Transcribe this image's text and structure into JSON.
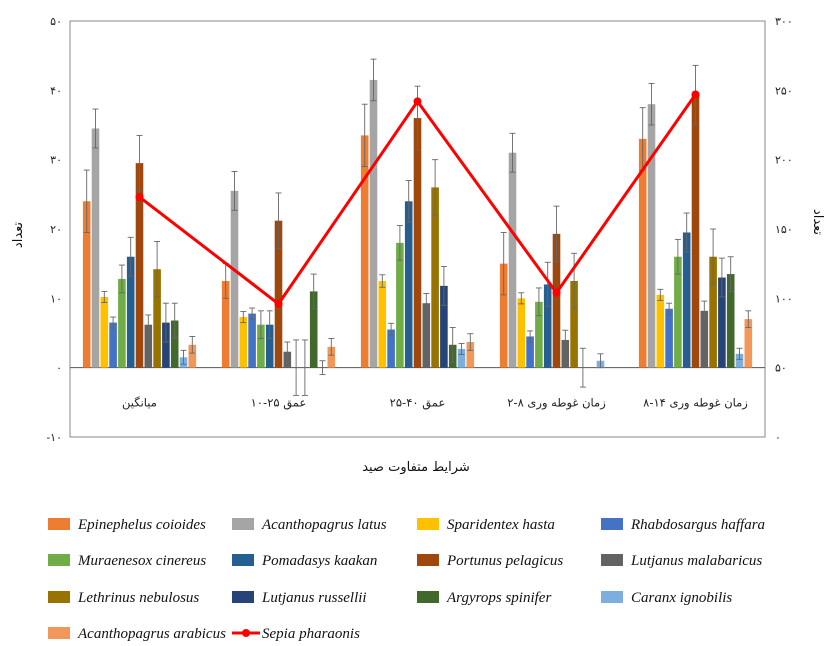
{
  "chart_data": {
    "type": "bar",
    "title": "",
    "xlabel": "شرایط متفاوت صید",
    "ylabel": "تعداد",
    "y2label": "تعداد",
    "categories": [
      "میانگین",
      "عمق ۲۵-۱۰",
      "عمق ۴۰-۲۵",
      "زمان غوطه وری ۸-۲",
      "زمان غوطه وری ۱۴-۸"
    ],
    "ylim": [
      -10,
      50
    ],
    "yticks": [
      -10,
      0,
      10,
      20,
      30,
      40,
      50
    ],
    "ytick_labels": [
      "-۱۰",
      "۰",
      "۱۰",
      "۲۰",
      "۳۰",
      "۴۰",
      "۵۰"
    ],
    "y2lim": [
      0,
      300
    ],
    "y2ticks": [
      0,
      50,
      100,
      150,
      200,
      250,
      300
    ],
    "y2tick_labels": [
      "۰",
      "۵۰",
      "۱۰۰",
      "۱۵۰",
      "۲۰۰",
      "۲۵۰",
      "۳۰۰"
    ],
    "legend_position": "bottom",
    "series": [
      {
        "name": "Epinephelus coioides",
        "color": "#ED7D31",
        "values": [
          24,
          12.5,
          33.5,
          15,
          33
        ],
        "errors": [
          4.5,
          2.5,
          4.5,
          4.5,
          4.5
        ]
      },
      {
        "name": "Acanthopagrus latus",
        "color": "#A5A5A5",
        "values": [
          34.5,
          25.5,
          41.5,
          31,
          38
        ],
        "errors": [
          2.8,
          2.8,
          3,
          2.8,
          3
        ]
      },
      {
        "name": "Sparidentex hasta",
        "color": "#FFC000",
        "values": [
          10.2,
          7.3,
          12.5,
          10,
          10.5
        ],
        "errors": [
          0.8,
          0.8,
          0.9,
          0.8,
          0.8
        ]
      },
      {
        "name": "Rhabdosargus haffara",
        "color": "#4472C4",
        "values": [
          6.5,
          7.8,
          5.5,
          4.5,
          8.5
        ],
        "errors": [
          0.8,
          0.8,
          0.9,
          0.8,
          0.8
        ]
      },
      {
        "name": "Muraenesox cinereus",
        "color": "#70AD47",
        "values": [
          12.8,
          6.2,
          18,
          9.5,
          16
        ],
        "errors": [
          2,
          2,
          2.5,
          2,
          2.5
        ]
      },
      {
        "name": "Pomadasys kaakan",
        "color": "#255E91",
        "values": [
          16,
          6.2,
          24,
          12,
          19.5
        ],
        "errors": [
          2.8,
          2,
          3,
          3.2,
          2.8
        ]
      },
      {
        "name": "Portunus pelagicus",
        "color": "#9E480E",
        "values": [
          29.5,
          21.2,
          36,
          19.3,
          39.3
        ],
        "errors": [
          4,
          4,
          4.6,
          4,
          4.3
        ]
      },
      {
        "name": "Lutjanus malabaricus",
        "color": "#636363",
        "values": [
          6.2,
          2.3,
          9.3,
          4,
          8.2
        ],
        "errors": [
          1.4,
          1.4,
          1.4,
          1.4,
          1.4
        ]
      },
      {
        "name": "Lethrinus nebulosus",
        "color": "#997300",
        "values": [
          14.2,
          0,
          26,
          12.5,
          16
        ],
        "errors": [
          4,
          4,
          4,
          4,
          4
        ]
      },
      {
        "name": "Lutjanus russellii",
        "color": "#264478",
        "values": [
          6.5,
          0,
          11.8,
          0,
          13
        ],
        "errors": [
          2.8,
          4,
          2.8,
          2.8,
          2.8
        ]
      },
      {
        "name": "Argyrops spinifer",
        "color": "#43682B",
        "values": [
          6.8,
          11,
          3.3,
          0,
          13.5
        ],
        "errors": [
          2.5,
          2.5,
          2.5,
          0,
          2.5
        ]
      },
      {
        "name": "Caranx ignobilis",
        "color": "#7CAFDD",
        "values": [
          1.5,
          0,
          2.7,
          1,
          2
        ],
        "errors": [
          1,
          1,
          0.8,
          1,
          0.8
        ]
      },
      {
        "name": "Acanthopagrus arabicus",
        "color": "#F1975A",
        "values": [
          3.3,
          3,
          3.7,
          0,
          7
        ],
        "errors": [
          1.2,
          1.2,
          1.2,
          0,
          1.2
        ]
      }
    ],
    "line_series": {
      "name": "Sepia pharaonis",
      "color": "#FF0000",
      "axis": "secondary",
      "values": [
        173,
        96,
        242,
        104,
        247
      ]
    }
  }
}
